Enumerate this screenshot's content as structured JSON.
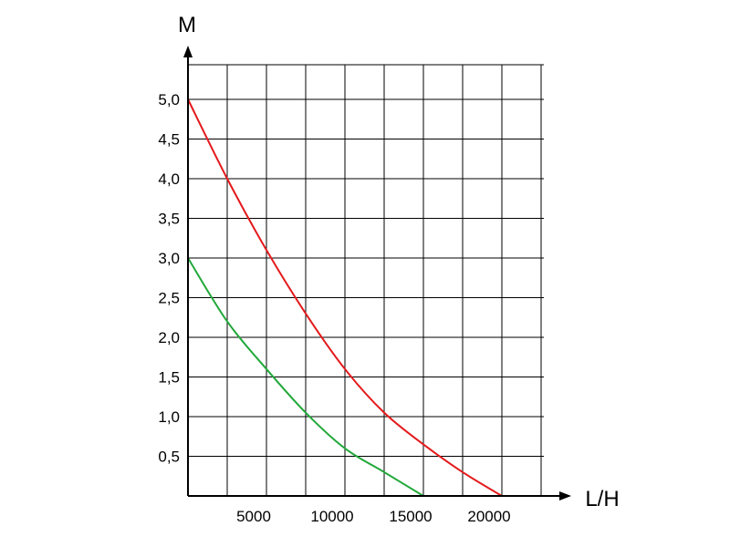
{
  "chart_data": {
    "type": "line",
    "xlabel": "L/H",
    "ylabel": "M",
    "xlim": [
      0,
      20000
    ],
    "ylim": [
      0,
      5.0
    ],
    "x_ticks": [
      "5000",
      "10000",
      "15000",
      "20000"
    ],
    "y_ticks": [
      "0,5",
      "1,0",
      "1,5",
      "2,0",
      "2,5",
      "3,0",
      "3,5",
      "4,0",
      "4,5",
      "5,0"
    ],
    "grid": true,
    "series": [
      {
        "color": "#e31a1c",
        "x": [
          0,
          2500,
          5000,
          7500,
          10000,
          12500,
          15000,
          17500,
          20000
        ],
        "y": [
          5.0,
          4.0,
          3.1,
          2.3,
          1.6,
          1.05,
          0.65,
          0.3,
          0.0
        ]
      },
      {
        "color": "#22a83a",
        "x": [
          0,
          2500,
          5000,
          7500,
          10000,
          12500,
          15000
        ],
        "y": [
          3.0,
          2.2,
          1.6,
          1.05,
          0.6,
          0.3,
          0.0
        ]
      }
    ]
  }
}
